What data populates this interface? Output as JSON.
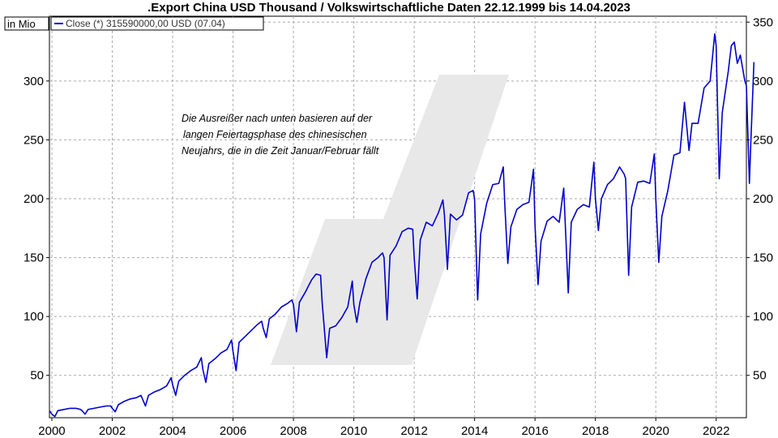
{
  "chart_data": {
    "type": "line",
    "title": ".Export China USD Thousand / Volkswirtschaftliche Daten 22.12.1999 bis 14.04.2023",
    "unit_label": "in Mio",
    "legend": "Close (*) 315590000,00 USD (07.04)",
    "annotation": [
      "Die Ausreißer nach unten basieren auf der",
      "langen Feiertagsphase des chinesischen",
      "Neujahrs, die in die Zeit Januar/Februar fällt"
    ],
    "xlim": [
      1999.92,
      2023.0
    ],
    "ylim": [
      14,
      355
    ],
    "x_ticks": [
      "2000",
      "2002",
      "2004",
      "2006",
      "2008",
      "2010",
      "2012",
      "2014",
      "2016",
      "2018",
      "2020",
      "2022"
    ],
    "y_ticks": [
      "50",
      "100",
      "150",
      "200",
      "250",
      "300",
      "350"
    ],
    "grid": true,
    "legend_position": "top-left",
    "series": [
      {
        "color": "#0000cc",
        "points": [
          [
            1999.92,
            20
          ],
          [
            2000.0,
            17
          ],
          [
            2000.1,
            15
          ],
          [
            2000.2,
            20
          ],
          [
            2000.4,
            21
          ],
          [
            2000.6,
            22
          ],
          [
            2000.8,
            22
          ],
          [
            2000.95,
            21
          ],
          [
            2001.0,
            20
          ],
          [
            2001.1,
            17
          ],
          [
            2001.2,
            21
          ],
          [
            2001.4,
            22
          ],
          [
            2001.6,
            23
          ],
          [
            2001.8,
            24
          ],
          [
            2001.95,
            24
          ],
          [
            2002.0,
            22
          ],
          [
            2002.1,
            19
          ],
          [
            2002.2,
            25
          ],
          [
            2002.4,
            28
          ],
          [
            2002.6,
            30
          ],
          [
            2002.8,
            31
          ],
          [
            2002.95,
            33
          ],
          [
            2003.0,
            30
          ],
          [
            2003.1,
            24
          ],
          [
            2003.2,
            33
          ],
          [
            2003.4,
            36
          ],
          [
            2003.6,
            38
          ],
          [
            2003.8,
            41
          ],
          [
            2003.95,
            48
          ],
          [
            2004.0,
            42
          ],
          [
            2004.1,
            33
          ],
          [
            2004.2,
            45
          ],
          [
            2004.4,
            50
          ],
          [
            2004.6,
            54
          ],
          [
            2004.8,
            57
          ],
          [
            2004.95,
            65
          ],
          [
            2005.0,
            55
          ],
          [
            2005.1,
            44
          ],
          [
            2005.2,
            60
          ],
          [
            2005.4,
            64
          ],
          [
            2005.6,
            69
          ],
          [
            2005.8,
            72
          ],
          [
            2005.95,
            80
          ],
          [
            2006.0,
            70
          ],
          [
            2006.1,
            54
          ],
          [
            2006.2,
            78
          ],
          [
            2006.4,
            83
          ],
          [
            2006.6,
            88
          ],
          [
            2006.8,
            93
          ],
          [
            2006.95,
            96
          ],
          [
            2007.0,
            90
          ],
          [
            2007.1,
            82
          ],
          [
            2007.2,
            98
          ],
          [
            2007.4,
            102
          ],
          [
            2007.6,
            108
          ],
          [
            2007.8,
            111
          ],
          [
            2007.95,
            114
          ],
          [
            2008.0,
            110
          ],
          [
            2008.1,
            87
          ],
          [
            2008.2,
            112
          ],
          [
            2008.4,
            121
          ],
          [
            2008.6,
            131
          ],
          [
            2008.75,
            136
          ],
          [
            2008.9,
            135
          ],
          [
            2008.95,
            112
          ],
          [
            2009.0,
            97
          ],
          [
            2009.1,
            65
          ],
          [
            2009.2,
            90
          ],
          [
            2009.4,
            92
          ],
          [
            2009.6,
            99
          ],
          [
            2009.8,
            108
          ],
          [
            2009.95,
            130
          ],
          [
            2010.0,
            110
          ],
          [
            2010.1,
            95
          ],
          [
            2010.2,
            112
          ],
          [
            2010.4,
            132
          ],
          [
            2010.6,
            146
          ],
          [
            2010.8,
            150
          ],
          [
            2010.95,
            154
          ],
          [
            2011.0,
            150
          ],
          [
            2011.1,
            97
          ],
          [
            2011.2,
            152
          ],
          [
            2011.4,
            160
          ],
          [
            2011.6,
            172
          ],
          [
            2011.8,
            175
          ],
          [
            2011.95,
            174
          ],
          [
            2012.0,
            150
          ],
          [
            2012.1,
            115
          ],
          [
            2012.2,
            165
          ],
          [
            2012.4,
            180
          ],
          [
            2012.6,
            177
          ],
          [
            2012.8,
            188
          ],
          [
            2012.95,
            199
          ],
          [
            2013.0,
            186
          ],
          [
            2013.1,
            140
          ],
          [
            2013.2,
            187
          ],
          [
            2013.4,
            182
          ],
          [
            2013.6,
            186
          ],
          [
            2013.8,
            205
          ],
          [
            2013.95,
            207
          ],
          [
            2014.0,
            200
          ],
          [
            2014.1,
            114
          ],
          [
            2014.2,
            170
          ],
          [
            2014.4,
            196
          ],
          [
            2014.6,
            212
          ],
          [
            2014.8,
            213
          ],
          [
            2014.95,
            227
          ],
          [
            2015.0,
            195
          ],
          [
            2015.1,
            145
          ],
          [
            2015.2,
            176
          ],
          [
            2015.4,
            191
          ],
          [
            2015.6,
            195
          ],
          [
            2015.8,
            197
          ],
          [
            2015.95,
            225
          ],
          [
            2016.0,
            177
          ],
          [
            2016.1,
            127
          ],
          [
            2016.2,
            164
          ],
          [
            2016.4,
            181
          ],
          [
            2016.6,
            185
          ],
          [
            2016.8,
            180
          ],
          [
            2016.95,
            209
          ],
          [
            2017.0,
            180
          ],
          [
            2017.1,
            120
          ],
          [
            2017.2,
            180
          ],
          [
            2017.4,
            191
          ],
          [
            2017.6,
            195
          ],
          [
            2017.8,
            193
          ],
          [
            2017.95,
            231
          ],
          [
            2018.0,
            200
          ],
          [
            2018.1,
            173
          ],
          [
            2018.2,
            200
          ],
          [
            2018.4,
            212
          ],
          [
            2018.6,
            217
          ],
          [
            2018.8,
            227
          ],
          [
            2018.95,
            221
          ],
          [
            2019.0,
            217
          ],
          [
            2019.1,
            135
          ],
          [
            2019.2,
            193
          ],
          [
            2019.4,
            214
          ],
          [
            2019.6,
            215
          ],
          [
            2019.8,
            213
          ],
          [
            2019.95,
            238
          ],
          [
            2020.0,
            200
          ],
          [
            2020.1,
            146
          ],
          [
            2020.2,
            185
          ],
          [
            2020.4,
            207
          ],
          [
            2020.6,
            237
          ],
          [
            2020.8,
            239
          ],
          [
            2020.95,
            282
          ],
          [
            2021.0,
            268
          ],
          [
            2021.1,
            241
          ],
          [
            2021.2,
            264
          ],
          [
            2021.4,
            264
          ],
          [
            2021.6,
            294
          ],
          [
            2021.8,
            300
          ],
          [
            2021.95,
            340
          ],
          [
            2022.0,
            330
          ],
          [
            2022.1,
            217
          ],
          [
            2022.2,
            273
          ],
          [
            2022.4,
            308
          ],
          [
            2022.5,
            330
          ],
          [
            2022.6,
            333
          ],
          [
            2022.7,
            315
          ],
          [
            2022.8,
            322
          ],
          [
            2022.95,
            300
          ],
          [
            2023.0,
            296
          ],
          [
            2023.1,
            213
          ],
          [
            2023.15,
            250
          ],
          [
            2023.25,
            316
          ]
        ]
      }
    ]
  }
}
